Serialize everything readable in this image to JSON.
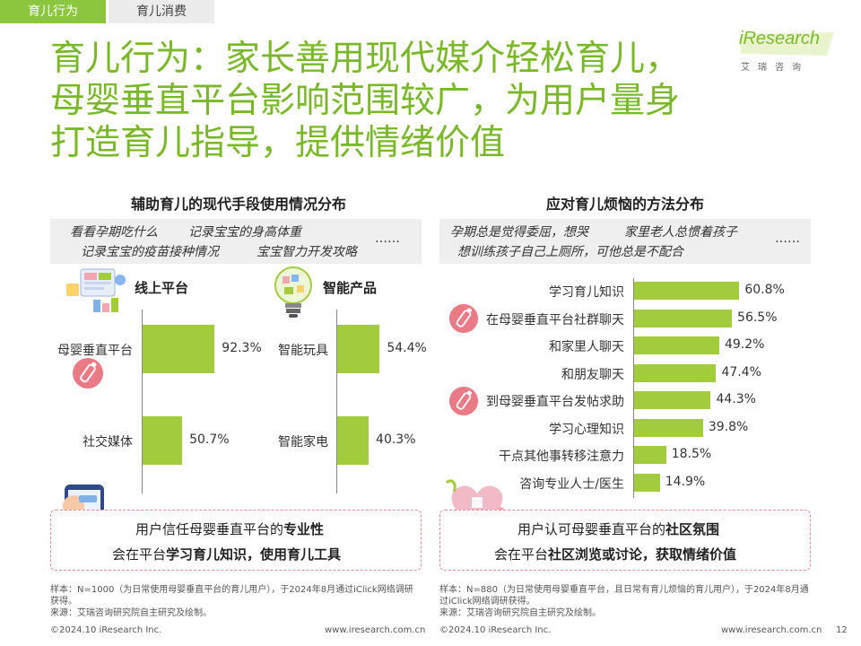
{
  "tabs": [
    "育儿行为",
    "育儿消费"
  ],
  "logo": {
    "main": "iResearch",
    "sub": "艾瑞咨询"
  },
  "title_lines": [
    "育儿行为：家长善用现代媒介轻松育儿，",
    "母婴垂直平台影响范围较广，为用户量身",
    "打造育儿指导，提供情绪价值"
  ],
  "left": {
    "title": "辅助育儿的现代手段使用情况分布",
    "quotes": [
      "看看孕期吃什么",
      "记录宝宝的身高体重",
      "记录宝宝的疫苗接种情况",
      "宝宝智力开发攻略",
      "……"
    ],
    "group1": {
      "label": "线上平台"
    },
    "group2": {
      "label": "智能产品"
    },
    "callout": {
      "line1_pre": "用户信任母婴垂直平台的",
      "line1_bold": "专业性",
      "line2_pre": "会在平台",
      "line2_bold": "学习育儿知识，使用育儿工具"
    },
    "footnote": {
      "sample": "样本：N=1000（为日常使用母婴垂直平台的育儿用户），于2024年8月通过iClick网络调研获得。",
      "source": "来源：艾瑞咨询研究院自主研究及绘制。"
    },
    "copyright": "©2024.10 iResearch Inc.",
    "url": "www.iresearch.com.cn"
  },
  "right": {
    "title": "应对育儿烦恼的方法分布",
    "quotes": [
      "孕期总是觉得委屈，想哭",
      "家里老人总惯着孩子",
      "想训练孩子自己上厕所，可他总是不配合",
      "……"
    ],
    "callout": {
      "line1_pre": "用户认可母婴垂直平台的",
      "line1_bold": "社区氛围",
      "line2_pre": "会在平台",
      "line2_bold": "社区浏览或讨论，获取情绪价值"
    },
    "footnote": {
      "sample": "样本：N=880（为日常使用母婴垂直平台，且日常有育儿烦恼的育儿用户），于2024年8月通过iClick网络调研获得。",
      "source": "来源：艾瑞咨询研究院自主研究及绘制。"
    },
    "copyright": "©2024.10 iResearch Inc.",
    "url": "www.iresearch.com.cn"
  },
  "page_number": "12",
  "colors": {
    "accent": "#7ab829",
    "bar": "#a3cc3d",
    "callout_border": "#e88a8f",
    "tab_active": "#8cc63f"
  },
  "chart_data": [
    {
      "type": "bar",
      "title": "辅助育儿的现代手段使用情况分布",
      "groups": [
        {
          "name": "线上平台",
          "categories": [
            "母婴垂直平台",
            "社交媒体"
          ],
          "values": [
            92.3,
            50.7
          ],
          "labels": [
            "92.3%",
            "50.7%"
          ]
        },
        {
          "name": "智能产品",
          "categories": [
            "智能玩具",
            "智能家电"
          ],
          "values": [
            54.4,
            40.3
          ],
          "labels": [
            "54.4%",
            "40.3%"
          ]
        }
      ],
      "unit": "%",
      "xlim": [
        0,
        100
      ]
    },
    {
      "type": "bar",
      "orientation": "horizontal",
      "title": "应对育儿烦恼的方法分布",
      "categories": [
        "学习育儿知识",
        "在母婴垂直平台社群聊天",
        "和家里人聊天",
        "和朋友聊天",
        "到母婴垂直平台发帖求助",
        "学习心理知识",
        "干点其他事转移注意力",
        "咨询专业人士/医生"
      ],
      "values": [
        60.8,
        56.5,
        49.2,
        47.4,
        44.3,
        39.8,
        18.5,
        14.9
      ],
      "labels": [
        "60.8%",
        "56.5%",
        "49.2%",
        "47.4%",
        "44.3%",
        "39.8%",
        "18.5%",
        "14.9%"
      ],
      "unit": "%",
      "xlim": [
        0,
        100
      ]
    }
  ]
}
